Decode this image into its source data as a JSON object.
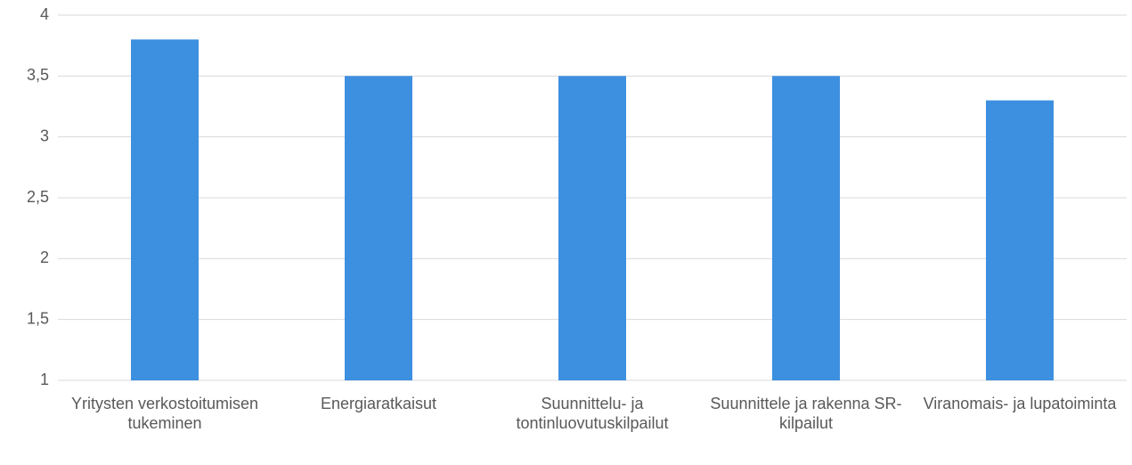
{
  "chart_data": {
    "type": "bar",
    "categories": [
      "Yritysten verkostoitumisen tukeminen",
      "Energiaratkaisut",
      "Suunnittelu- ja tontinluovutuskilpailut",
      "Suunnittele ja rakenna SR-kilpailut",
      "Viranomais- ja lupatoiminta"
    ],
    "values": [
      3.8,
      3.5,
      3.5,
      3.5,
      3.3
    ],
    "color": "#3d8fe0",
    "ylim": [
      1,
      4
    ],
    "yticks": [
      1,
      {
        "value": 1.5,
        "label": "1,5"
      },
      2,
      {
        "value": 2.5,
        "label": "2,5"
      },
      3,
      {
        "value": 3.5,
        "label": "3,5"
      },
      4
    ],
    "grid": true
  }
}
